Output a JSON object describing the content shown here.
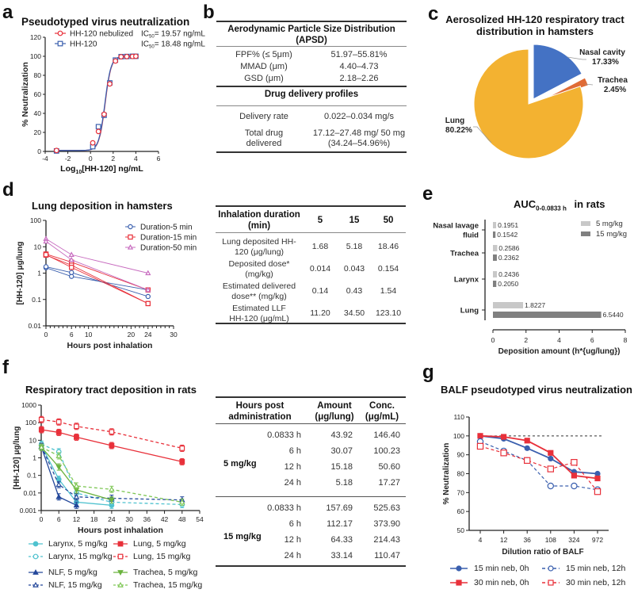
{
  "panels": {
    "a": {
      "letter": "a"
    },
    "b": {
      "letter": "b"
    },
    "c": {
      "letter": "c"
    },
    "d": {
      "letter": "d"
    },
    "e": {
      "letter": "e"
    },
    "f": {
      "letter": "f"
    },
    "g": {
      "letter": "g"
    }
  },
  "table_b": {
    "section1_title_line1": "Aerodynamic Particle Size Distribution",
    "section1_title_line2": "(APSD)",
    "section1_rows": [
      {
        "label": "FPF% (≤ 5μm)",
        "value": "51.97–55.81%"
      },
      {
        "label": "MMAD (μm)",
        "value": "4.40–4.73"
      },
      {
        "label": "GSD (μm)",
        "value": "2.18–2.26"
      }
    ],
    "section2_title": "Drug delivery profiles",
    "section2_rows": [
      {
        "label": "Delivery rate",
        "value": "0.022–0.034 mg/s"
      },
      {
        "label_line1": "Total drug",
        "label_line2": "delivered",
        "value_line1": "17.12–27.48 mg/ 50 mg",
        "value_line2": "(34.24–54.96%)"
      }
    ]
  },
  "table_d": {
    "header": {
      "col0_line1": "Inhalation duration",
      "col0_line2": "(min)",
      "cols": [
        "5",
        "15",
        "50"
      ]
    },
    "rows": [
      {
        "label_line1": "Lung deposited HH-",
        "label_line2": "120 (μg/lung)",
        "values": [
          "1.68",
          "5.18",
          "18.46"
        ]
      },
      {
        "label_line1": "Deposited dose*",
        "label_line2": "(mg/kg)",
        "values": [
          "0.014",
          "0.043",
          "0.154"
        ]
      },
      {
        "label_line1": "Estimated delivered",
        "label_line2": "dose** (mg/kg)",
        "values": [
          "0.14",
          "0.43",
          "1.54"
        ]
      },
      {
        "label_line1": "Estimated LLF",
        "label_line2": "HH-120 (μg/mL)",
        "values": [
          "11.20",
          "34.50",
          "123.10"
        ]
      }
    ]
  },
  "table_f": {
    "header": {
      "col0_line1": "Hours post",
      "col0_line2": "administration",
      "col1_line1": "Amount",
      "col1_line2": "(μg/lung)",
      "col2_line1": "Conc.",
      "col2_line2": "(μg/mL)"
    },
    "groups": [
      {
        "dose": "5 mg/kg",
        "rows": [
          {
            "time": "0.0833 h",
            "amount": "43.92",
            "conc": "146.40"
          },
          {
            "time": "6 h",
            "amount": "30.07",
            "conc": "100.23"
          },
          {
            "time": "12 h",
            "amount": "15.18",
            "conc": "50.60"
          },
          {
            "time": "24 h",
            "amount": "5.18",
            "conc": "17.27"
          }
        ]
      },
      {
        "dose": "15 mg/kg",
        "rows": [
          {
            "time": "0.0833 h",
            "amount": "157.69",
            "conc": "525.63"
          },
          {
            "time": "6 h",
            "amount": "112.17",
            "conc": "373.90"
          },
          {
            "time": "12 h",
            "amount": "64.33",
            "conc": "214.43"
          },
          {
            "time": "24 h",
            "amount": "33.14",
            "conc": "110.47"
          }
        ]
      }
    ]
  },
  "colors": {
    "red": "#e8303a",
    "blue": "#3a5fae",
    "purple": "#c76bbf",
    "cyan": "#4fc2cf",
    "navy": "#24489b",
    "green": "#6bb33f",
    "lightgreen": "#7fc756",
    "pie_blue": "#4472c4",
    "pie_orange": "#e06b35",
    "pie_yellow": "#f3b231",
    "bar_light": "#c8c8c8",
    "bar_dark": "#808080"
  },
  "chart_data": [
    {
      "id": "a",
      "type": "scatter",
      "title": "Pseudotyped virus neutralization",
      "xlabel": "Log10[HH-120] ng/mL",
      "xlabel_main": "Log",
      "xlabel_sub": "10",
      "xlabel_rest": "[HH-120] ng/mL",
      "ylabel": "% Neutralization",
      "xlim": [
        -4,
        6
      ],
      "ylim": [
        0,
        120
      ],
      "xticks": [
        -4,
        -2,
        0,
        2,
        4,
        6
      ],
      "yticks": [
        0,
        20,
        40,
        60,
        80,
        100,
        120
      ],
      "legend": [
        {
          "name": "HH-120  nebulized",
          "ic50_prefix": "IC",
          "ic50_sub": "50",
          "ic50_value": "= 19.57 ng/mL"
        },
        {
          "name": "HH-120",
          "ic50_prefix": "IC",
          "ic50_sub": "50",
          "ic50_value": "= 18.48 ng/mL"
        }
      ],
      "series": [
        {
          "name": "HH-120 nebulized",
          "marker": "circle",
          "x": [
            -3,
            0.2,
            0.7,
            1.2,
            1.7,
            2.2,
            2.7,
            3.2,
            3.7,
            4.0
          ],
          "y": [
            1,
            9,
            21,
            39,
            71,
            95,
            99.5,
            99.7,
            99.8,
            100
          ]
        },
        {
          "name": "HH-120",
          "marker": "square",
          "x": [
            -3,
            0.2,
            0.7,
            1.2,
            1.7,
            2.2,
            2.7,
            3.2,
            3.7,
            4.0
          ],
          "y": [
            0.5,
            5,
            26,
            38,
            72,
            96,
            99.6,
            99.8,
            100,
            100
          ]
        }
      ]
    },
    {
      "id": "c",
      "type": "pie",
      "title_line1": "Aerosolized HH-120 respiratory tract",
      "title_line2": "distribution in hamsters",
      "slices": [
        {
          "name": "Nasal cavity",
          "value": 17.33,
          "label": "17.33%"
        },
        {
          "name": "Trachea",
          "value": 2.45,
          "label": "2.45%"
        },
        {
          "name": "Lung",
          "value": 80.22,
          "label": "80.22%"
        }
      ]
    },
    {
      "id": "d",
      "type": "line",
      "title": "Lung deposition in hamsters",
      "xlabel": "Hours post inhalation",
      "ylabel": "[HH-120] μg/lung",
      "yscale": "log",
      "xlim": [
        0,
        30
      ],
      "ylim": [
        0.01,
        100
      ],
      "xticks": [
        0,
        6,
        10,
        20,
        24,
        30
      ],
      "yticks": [
        0.01,
        0.1,
        1,
        10,
        100
      ],
      "ytick_labels": [
        "0.01",
        "0.1",
        "1",
        "10",
        "100"
      ],
      "legend": [
        "Duration-5 min",
        "Duration-15 min",
        "Duration-50 min"
      ],
      "series": [
        {
          "name": "Duration-5 min",
          "marker": "circle",
          "lines": [
            {
              "x": [
                0,
                6,
                24
              ],
              "y": [
                1.6,
                0.75,
                0.23
              ]
            },
            {
              "x": [
                0,
                6,
                24
              ],
              "y": [
                1.75,
                1.05,
                0.13
              ]
            }
          ]
        },
        {
          "name": "Duration-15 min",
          "marker": "square",
          "lines": [
            {
              "x": [
                0,
                6,
                24
              ],
              "y": [
                5.3,
                2.6,
                0.23
              ]
            },
            {
              "x": [
                0,
                6,
                24
              ],
              "y": [
                4.8,
                2.0,
                0.07
              ]
            },
            {
              "x": [
                0,
                6,
                24
              ],
              "y": [
                5.0,
                1.65,
                0.07
              ]
            }
          ]
        },
        {
          "name": "Duration-50 min",
          "marker": "triangle",
          "lines": [
            {
              "x": [
                0,
                6,
                24
              ],
              "y": [
                20,
                5.0,
                1.0
              ]
            },
            {
              "x": [
                0,
                6,
                24
              ],
              "y": [
                16,
                3.2,
                0.23
              ]
            }
          ]
        }
      ]
    },
    {
      "id": "e",
      "type": "bar",
      "orientation": "horizontal",
      "title_main": "AUC",
      "title_sub": "0-0.0833 h",
      "title_rest": "in rats",
      "xlabel": "Deposition amount (h*{ug/lung})",
      "xlim": [
        0,
        8
      ],
      "xticks": [
        0,
        2,
        4,
        6,
        8
      ],
      "categories": [
        "Nasal lavage fluid",
        "Trachea",
        "Larynx",
        "Lung"
      ],
      "category_labels": [
        [
          "Nasal lavage",
          "fluid"
        ],
        [
          "Trachea"
        ],
        [
          "Larynx"
        ],
        [
          "Lung"
        ]
      ],
      "series": [
        {
          "name": "5 mg/kg",
          "values": [
            0.1951,
            0.2586,
            0.2436,
            1.8227
          ],
          "labels": [
            "0.1951",
            "0.2586",
            "0.2436",
            "1.8227"
          ]
        },
        {
          "name": "15 mg/kg",
          "values": [
            0.1542,
            0.2362,
            0.205,
            6.544
          ],
          "labels": [
            "0.1542",
            "0.2362",
            "0.2050",
            "6.5440"
          ]
        }
      ]
    },
    {
      "id": "f",
      "type": "line",
      "title": "Respiratory tract deposition in rats",
      "xlabel": "Hours post inhalation",
      "ylabel": "[HH-120] μg/lung",
      "yscale": "log",
      "xlim": [
        0,
        54
      ],
      "ylim": [
        0.001,
        1000
      ],
      "xticks": [
        0,
        6,
        12,
        18,
        24,
        30,
        36,
        42,
        48,
        54
      ],
      "yticks": [
        0.001,
        0.01,
        0.1,
        1,
        10,
        100,
        1000
      ],
      "ytick_labels": [
        "0.001",
        "0.01",
        "0.1",
        "1",
        "10",
        "100",
        "1000"
      ],
      "series": [
        {
          "name": "Larynx, 5 mg/kg",
          "color": "cyan",
          "dash": false,
          "marker": "circle-filled",
          "x": [
            0.0833,
            6,
            12,
            24
          ],
          "y": [
            5,
            0.06,
            0.003,
            0.002
          ]
        },
        {
          "name": "Larynx, 15 mg/kg",
          "color": "cyan",
          "dash": true,
          "marker": "circle-open",
          "x": [
            0.0833,
            6,
            12,
            24,
            48
          ],
          "y": [
            6,
            2.2,
            0.01,
            0.003,
            0.0022
          ]
        },
        {
          "name": "Lung, 5 mg/kg",
          "color": "red",
          "dash": false,
          "marker": "square-filled",
          "x": [
            0.0833,
            6,
            12,
            24,
            48
          ],
          "y": [
            40,
            28,
            15,
            5,
            0.6
          ]
        },
        {
          "name": "Lung, 15 mg/kg",
          "color": "red",
          "dash": true,
          "marker": "square-open",
          "x": [
            0.0833,
            6,
            12,
            24,
            48
          ],
          "y": [
            150,
            110,
            62,
            30,
            3.5
          ]
        },
        {
          "name": "NLF, 5 mg/kg",
          "color": "navy",
          "dash": false,
          "marker": "triangle-filled",
          "x": [
            0.0833,
            6,
            12
          ],
          "y": [
            4,
            0.006,
            0.002
          ]
        },
        {
          "name": "NLF, 15 mg/kg",
          "color": "navy",
          "dash": true,
          "marker": "triangle-open",
          "x": [
            0.0833,
            6,
            12,
            24,
            48
          ],
          "y": [
            4.5,
            0.03,
            0.006,
            0.005,
            0.004
          ]
        },
        {
          "name": "Trachea, 5 mg/kg",
          "color": "green",
          "dash": false,
          "marker": "down-triangle-filled",
          "x": [
            0.0833,
            6,
            12,
            24
          ],
          "y": [
            4,
            0.3,
            0.015,
            0.004
          ]
        },
        {
          "name": "Trachea, 15 mg/kg",
          "color": "lightgreen",
          "dash": true,
          "marker": "triangle-open",
          "x": [
            0.0833,
            6,
            12,
            24,
            48
          ],
          "y": [
            4,
            1.3,
            0.025,
            0.016,
            0.003
          ]
        }
      ]
    },
    {
      "id": "g",
      "type": "line",
      "title": "BALF pseudotyped virus neutralization",
      "xlabel": "Dilution ratio of  BALF",
      "ylabel": "% Neutralization",
      "categories": [
        "4",
        "12",
        "36",
        "108",
        "324",
        "972"
      ],
      "ylim": [
        50,
        110
      ],
      "yticks": [
        50,
        60,
        70,
        80,
        90,
        100,
        110
      ],
      "reference_line": 100,
      "series": [
        {
          "name": "15 min neb, 0h",
          "color": "blue",
          "dash": false,
          "marker": "circle-filled",
          "values": [
            100,
            98.5,
            93.5,
            88,
            81,
            80
          ]
        },
        {
          "name": "30 min neb, 0h",
          "color": "red",
          "dash": false,
          "marker": "square-filled",
          "values": [
            100,
            99.5,
            97.5,
            91,
            79,
            77.5
          ]
        },
        {
          "name": "15 min neb, 12h",
          "color": "blue",
          "dash": true,
          "marker": "circle-open",
          "values": [
            97,
            92,
            87,
            73.5,
            73.5,
            71.5
          ]
        },
        {
          "name": "30 min neb, 12h",
          "color": "red",
          "dash": true,
          "marker": "square-open",
          "values": [
            94.5,
            91,
            87,
            82.5,
            86,
            70.5
          ]
        }
      ]
    }
  ]
}
